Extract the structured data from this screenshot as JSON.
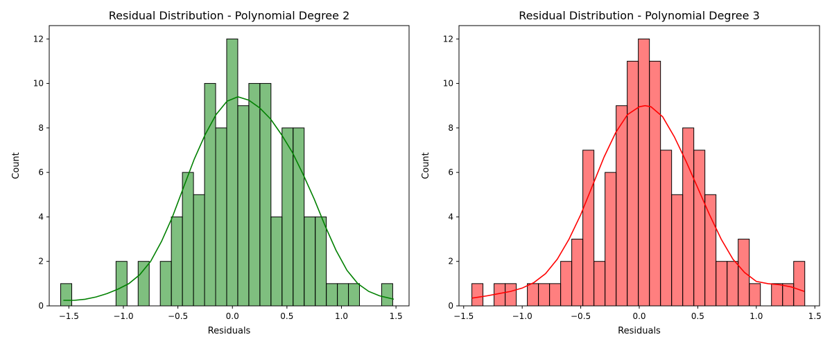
{
  "chart_data": [
    {
      "type": "bar",
      "title": "Residual Distribution - Polynomial Degree 2",
      "xlabel": "Residuals",
      "ylabel": "Count",
      "xlim": [
        -1.68,
        1.62
      ],
      "ylim": [
        0,
        12.6
      ],
      "xticks": [
        -1.5,
        -1.0,
        -0.5,
        0.0,
        0.5,
        1.0,
        1.5
      ],
      "xtick_labels": [
        "−1.5",
        "−1.0",
        "−0.5",
        "0.0",
        "0.5",
        "1.0",
        "1.5"
      ],
      "yticks": [
        0,
        2,
        4,
        6,
        8,
        10,
        12
      ],
      "grid": false,
      "bar_color": "#008000",
      "bar_fill_opacity": 0.5,
      "kde_color": "#008000",
      "bins": {
        "start": -1.575,
        "width": 0.1015,
        "counts": [
          1,
          0,
          0,
          0,
          0,
          2,
          0,
          2,
          0,
          2,
          4,
          6,
          5,
          10,
          8,
          12,
          9,
          10,
          10,
          4,
          8,
          8,
          4,
          4,
          1,
          1,
          1,
          0,
          0,
          1
        ]
      },
      "kde": {
        "x": [
          -1.55,
          -1.45,
          -1.35,
          -1.25,
          -1.15,
          -1.05,
          -0.95,
          -0.85,
          -0.75,
          -0.65,
          -0.55,
          -0.45,
          -0.35,
          -0.25,
          -0.15,
          -0.05,
          0.05,
          0.15,
          0.25,
          0.35,
          0.45,
          0.55,
          0.65,
          0.75,
          0.85,
          0.95,
          1.05,
          1.15,
          1.25,
          1.35,
          1.48
        ],
        "y": [
          0.25,
          0.25,
          0.3,
          0.4,
          0.55,
          0.75,
          1.0,
          1.4,
          2.0,
          2.9,
          4.0,
          5.3,
          6.6,
          7.7,
          8.6,
          9.2,
          9.4,
          9.25,
          8.9,
          8.4,
          7.7,
          6.9,
          5.9,
          4.8,
          3.6,
          2.5,
          1.6,
          1.0,
          0.65,
          0.45,
          0.3
        ]
      }
    },
    {
      "type": "bar",
      "title": "Residual Distribution - Polynomial Degree 3",
      "xlabel": "Residuals",
      "ylabel": "Count",
      "xlim": [
        -1.54,
        1.54
      ],
      "ylim": [
        0,
        12.6
      ],
      "xticks": [
        -1.5,
        -1.0,
        -0.5,
        0.0,
        0.5,
        1.0,
        1.5
      ],
      "xtick_labels": [
        "−1.5",
        "−1.0",
        "−0.5",
        "0.0",
        "0.5",
        "1.0",
        "1.5"
      ],
      "yticks": [
        0,
        2,
        4,
        6,
        8,
        10,
        12
      ],
      "grid": false,
      "bar_color": "#ff0000",
      "bar_fill_opacity": 0.5,
      "kde_color": "#ff0000",
      "bins": {
        "start": -1.43,
        "width": 0.0948,
        "counts": [
          1,
          0,
          1,
          1,
          0,
          1,
          1,
          1,
          2,
          3,
          7,
          2,
          6,
          9,
          11,
          12,
          11,
          7,
          5,
          8,
          7,
          5,
          2,
          2,
          3,
          1,
          0,
          1,
          1,
          2
        ]
      },
      "kde": {
        "x": [
          -1.43,
          -1.3,
          -1.2,
          -1.1,
          -1.0,
          -0.9,
          -0.8,
          -0.7,
          -0.6,
          -0.5,
          -0.4,
          -0.3,
          -0.2,
          -0.1,
          0.0,
          0.05,
          0.1,
          0.2,
          0.3,
          0.4,
          0.5,
          0.6,
          0.7,
          0.8,
          0.9,
          1.0,
          1.1,
          1.2,
          1.3,
          1.41
        ],
        "y": [
          0.35,
          0.45,
          0.55,
          0.65,
          0.8,
          1.05,
          1.45,
          2.1,
          3.0,
          4.1,
          5.4,
          6.7,
          7.8,
          8.6,
          8.95,
          9.0,
          8.95,
          8.5,
          7.6,
          6.5,
          5.3,
          4.1,
          3.0,
          2.1,
          1.5,
          1.1,
          1.0,
          0.95,
          0.85,
          0.65
        ]
      }
    }
  ]
}
